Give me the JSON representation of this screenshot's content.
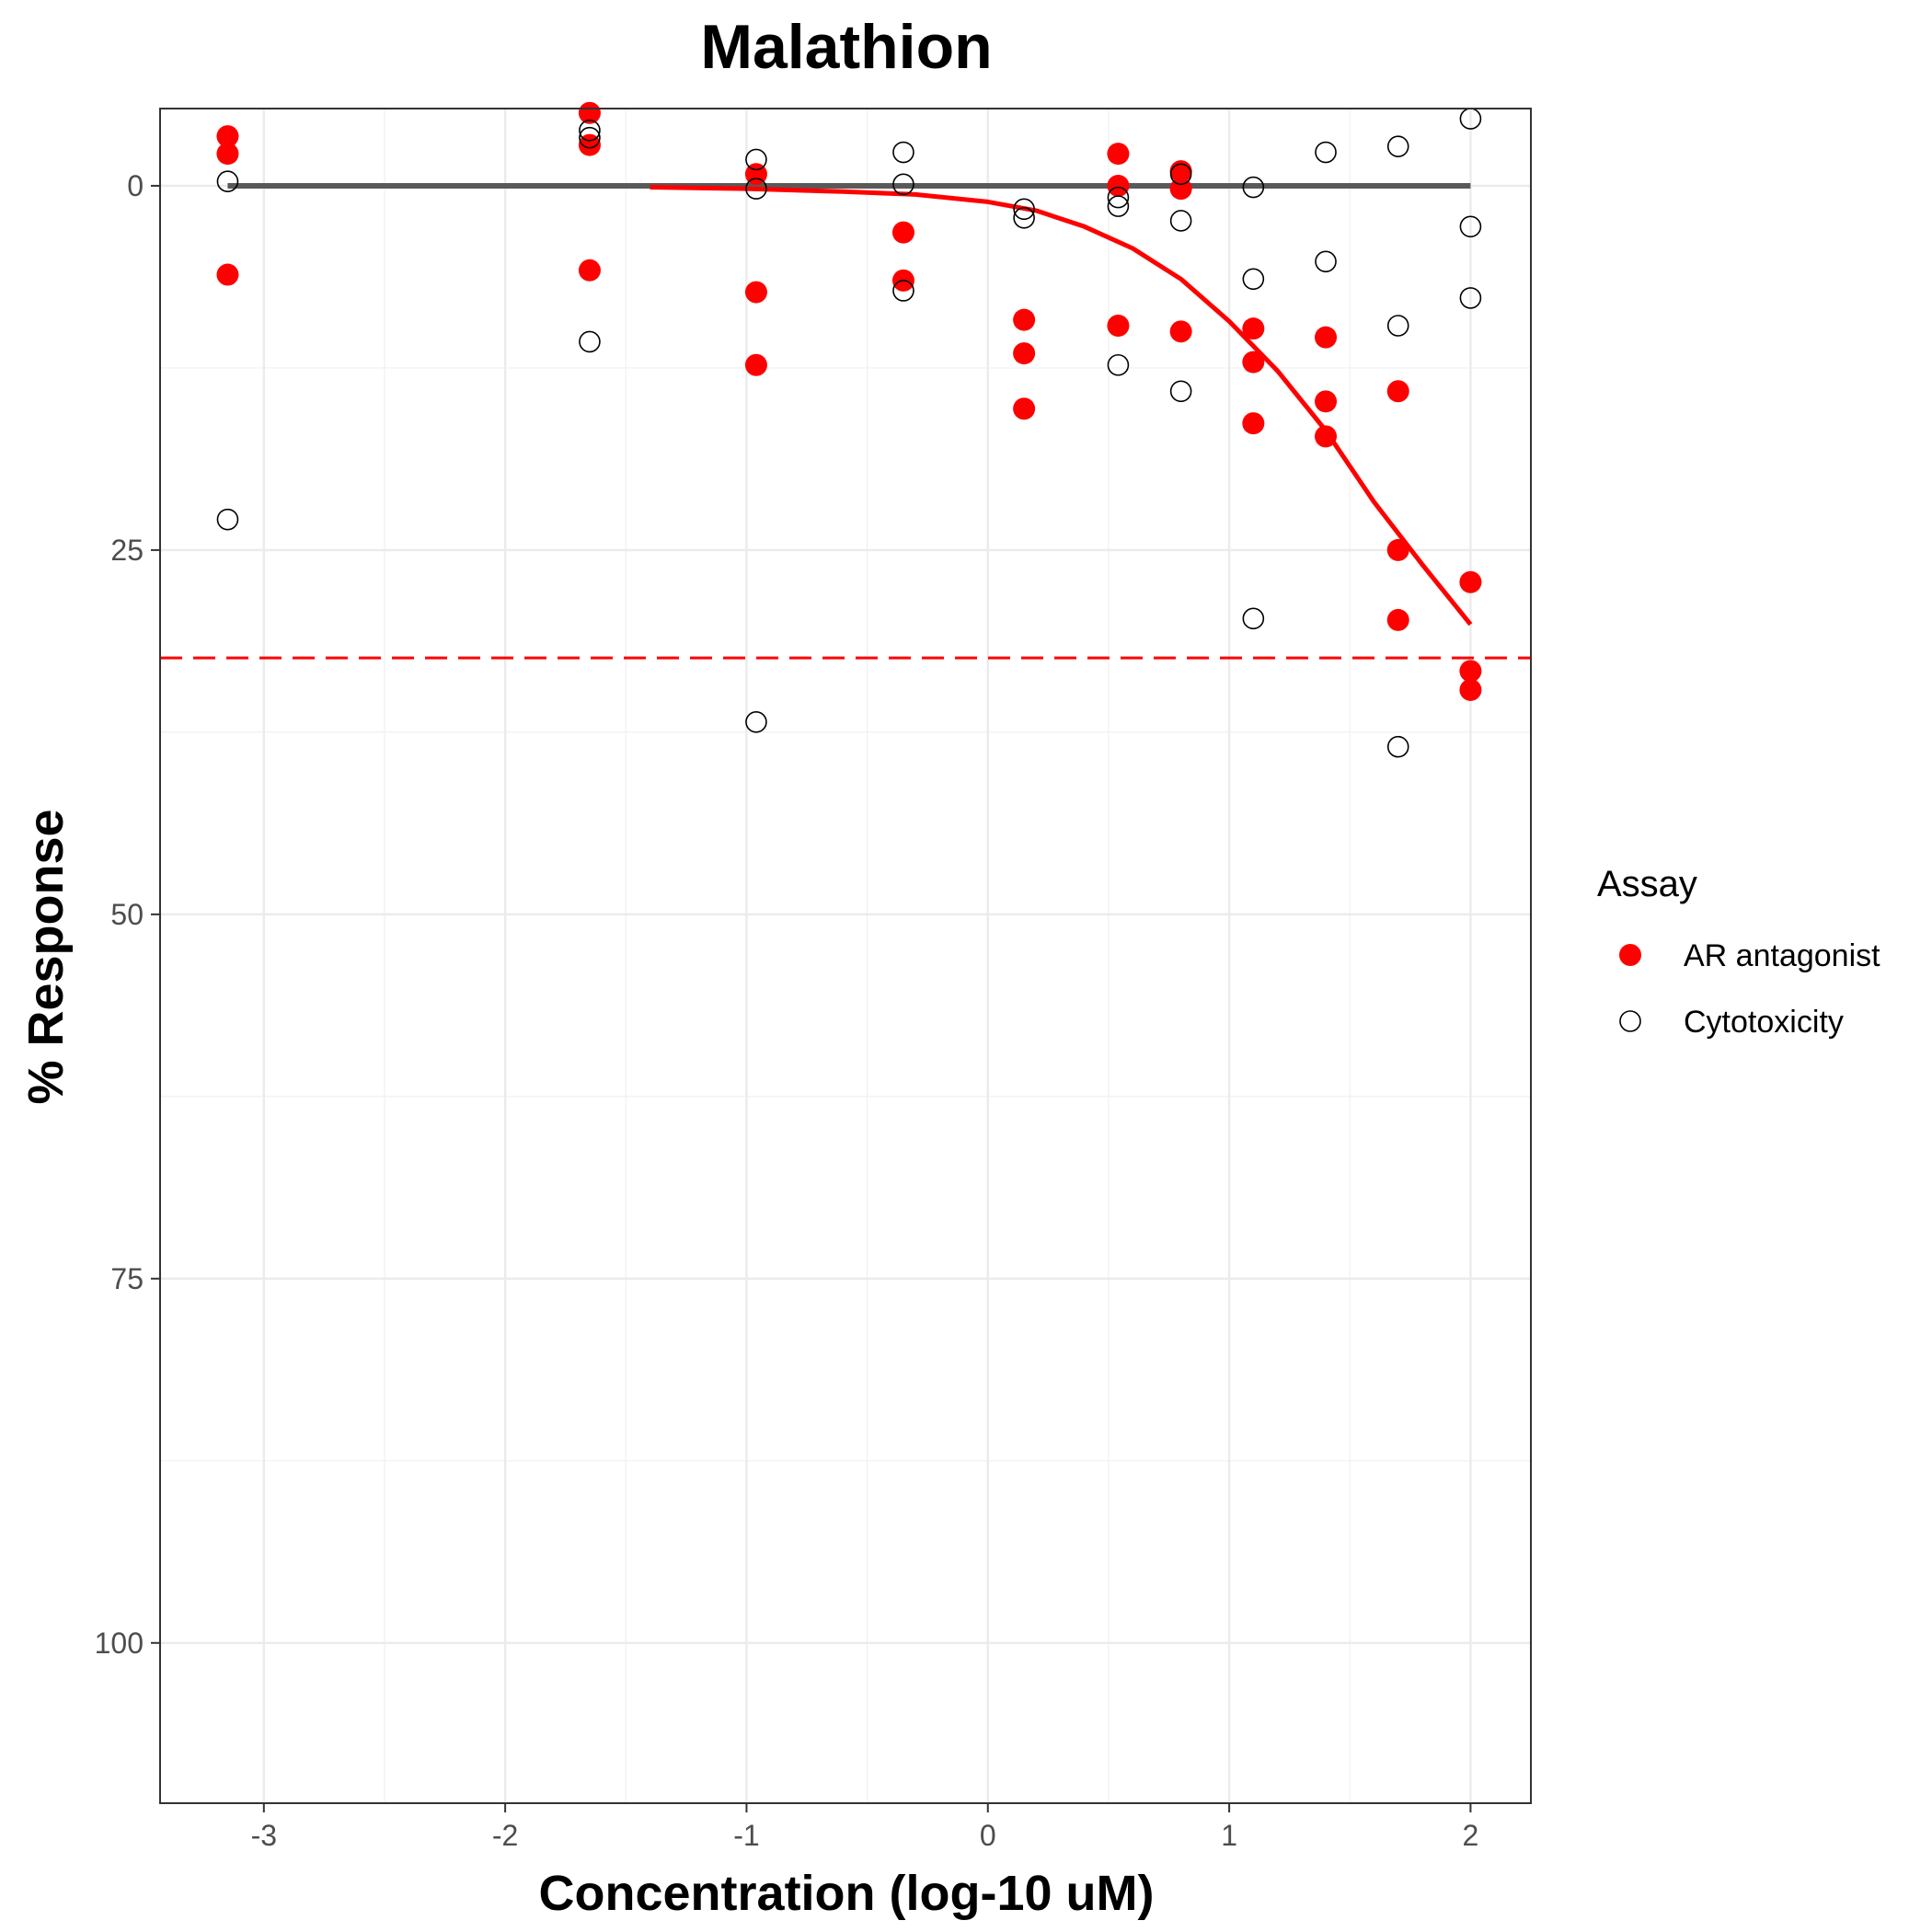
{
  "chart_data": {
    "type": "scatter",
    "title": "Malathion",
    "xlabel": "Concentration (log-10 uM)",
    "ylabel": "% Response",
    "xlim": [
      -3.43,
      2.25
    ],
    "ylim": [
      111,
      -5.3
    ],
    "y_reversed": true,
    "grid": true,
    "x_ticks": [
      -3,
      -2,
      -1,
      0,
      1,
      2
    ],
    "x_tick_labels": [
      "-3",
      "-2",
      "-1",
      "0",
      "1",
      "2"
    ],
    "y_ticks": [
      0,
      25,
      50,
      75,
      100
    ],
    "y_tick_labels": [
      "0",
      "25",
      "50",
      "75",
      "100"
    ],
    "legend": {
      "title": "Assay",
      "position": "right",
      "entries": [
        "AR antagonist",
        "Cytotoxicity"
      ]
    },
    "series": [
      {
        "name": "AR antagonist",
        "marker": "filled-circle",
        "color": "#ff0000",
        "points": [
          [
            -3.15,
            -3.4
          ],
          [
            -3.15,
            -2.2
          ],
          [
            -3.15,
            6.1
          ],
          [
            -1.65,
            -5.0
          ],
          [
            -1.65,
            -2.8
          ],
          [
            -1.65,
            5.8
          ],
          [
            -0.96,
            -0.8
          ],
          [
            -0.96,
            7.3
          ],
          [
            -0.96,
            12.3
          ],
          [
            -0.35,
            3.2
          ],
          [
            -0.35,
            6.5
          ],
          [
            0.15,
            9.2
          ],
          [
            0.15,
            11.5
          ],
          [
            0.15,
            15.3
          ],
          [
            0.54,
            -2.2
          ],
          [
            0.54,
            0.0
          ],
          [
            0.54,
            9.6
          ],
          [
            0.8,
            -1.0
          ],
          [
            0.8,
            0.2
          ],
          [
            0.8,
            10.0
          ],
          [
            1.1,
            9.8
          ],
          [
            1.1,
            12.1
          ],
          [
            1.1,
            16.3
          ],
          [
            1.4,
            10.4
          ],
          [
            1.4,
            14.8
          ],
          [
            1.4,
            17.2
          ],
          [
            1.7,
            14.1
          ],
          [
            1.7,
            25.0
          ],
          [
            1.7,
            29.8
          ],
          [
            2.0,
            27.2
          ],
          [
            2.0,
            33.3
          ],
          [
            2.0,
            34.6
          ]
        ]
      },
      {
        "name": "Cytotoxicity",
        "marker": "open-circle",
        "color": "#000000",
        "points": [
          [
            -3.15,
            -0.3
          ],
          [
            -3.15,
            22.9
          ],
          [
            -1.65,
            -3.8
          ],
          [
            -1.65,
            -3.3
          ],
          [
            -1.65,
            10.7
          ],
          [
            -0.96,
            -1.8
          ],
          [
            -0.96,
            0.2
          ],
          [
            -0.96,
            36.8
          ],
          [
            -0.35,
            -2.3
          ],
          [
            -0.35,
            -0.1
          ],
          [
            -0.35,
            7.2
          ],
          [
            0.15,
            1.6
          ],
          [
            0.15,
            2.2
          ],
          [
            0.54,
            0.8
          ],
          [
            0.54,
            1.4
          ],
          [
            0.54,
            12.3
          ],
          [
            0.8,
            -0.8
          ],
          [
            0.8,
            2.4
          ],
          [
            0.8,
            14.1
          ],
          [
            1.1,
            0.1
          ],
          [
            1.1,
            6.4
          ],
          [
            1.1,
            29.7
          ],
          [
            1.4,
            -2.3
          ],
          [
            1.4,
            5.2
          ],
          [
            1.7,
            -2.7
          ],
          [
            1.7,
            9.6
          ],
          [
            1.7,
            38.5
          ],
          [
            2.0,
            -4.6
          ],
          [
            2.0,
            2.8
          ],
          [
            2.0,
            7.7
          ]
        ]
      }
    ],
    "reference_lines": [
      {
        "type": "segment",
        "x": [
          -3.15,
          2.0
        ],
        "y": 0,
        "color": "#595959",
        "style": "solid"
      },
      {
        "type": "hline",
        "y": 32.4,
        "color": "#ff0000",
        "style": "dashed"
      }
    ],
    "fit_curve": {
      "color": "#ff0000",
      "points": [
        [
          -1.4,
          0.1
        ],
        [
          -1.0,
          0.2
        ],
        [
          -0.6,
          0.4
        ],
        [
          -0.3,
          0.6
        ],
        [
          0.0,
          1.1
        ],
        [
          0.2,
          1.7
        ],
        [
          0.4,
          2.8
        ],
        [
          0.6,
          4.3
        ],
        [
          0.8,
          6.4
        ],
        [
          1.0,
          9.3
        ],
        [
          1.2,
          12.7
        ],
        [
          1.4,
          16.8
        ],
        [
          1.6,
          21.7
        ],
        [
          1.8,
          26.0
        ],
        [
          2.0,
          30.1
        ]
      ]
    }
  }
}
